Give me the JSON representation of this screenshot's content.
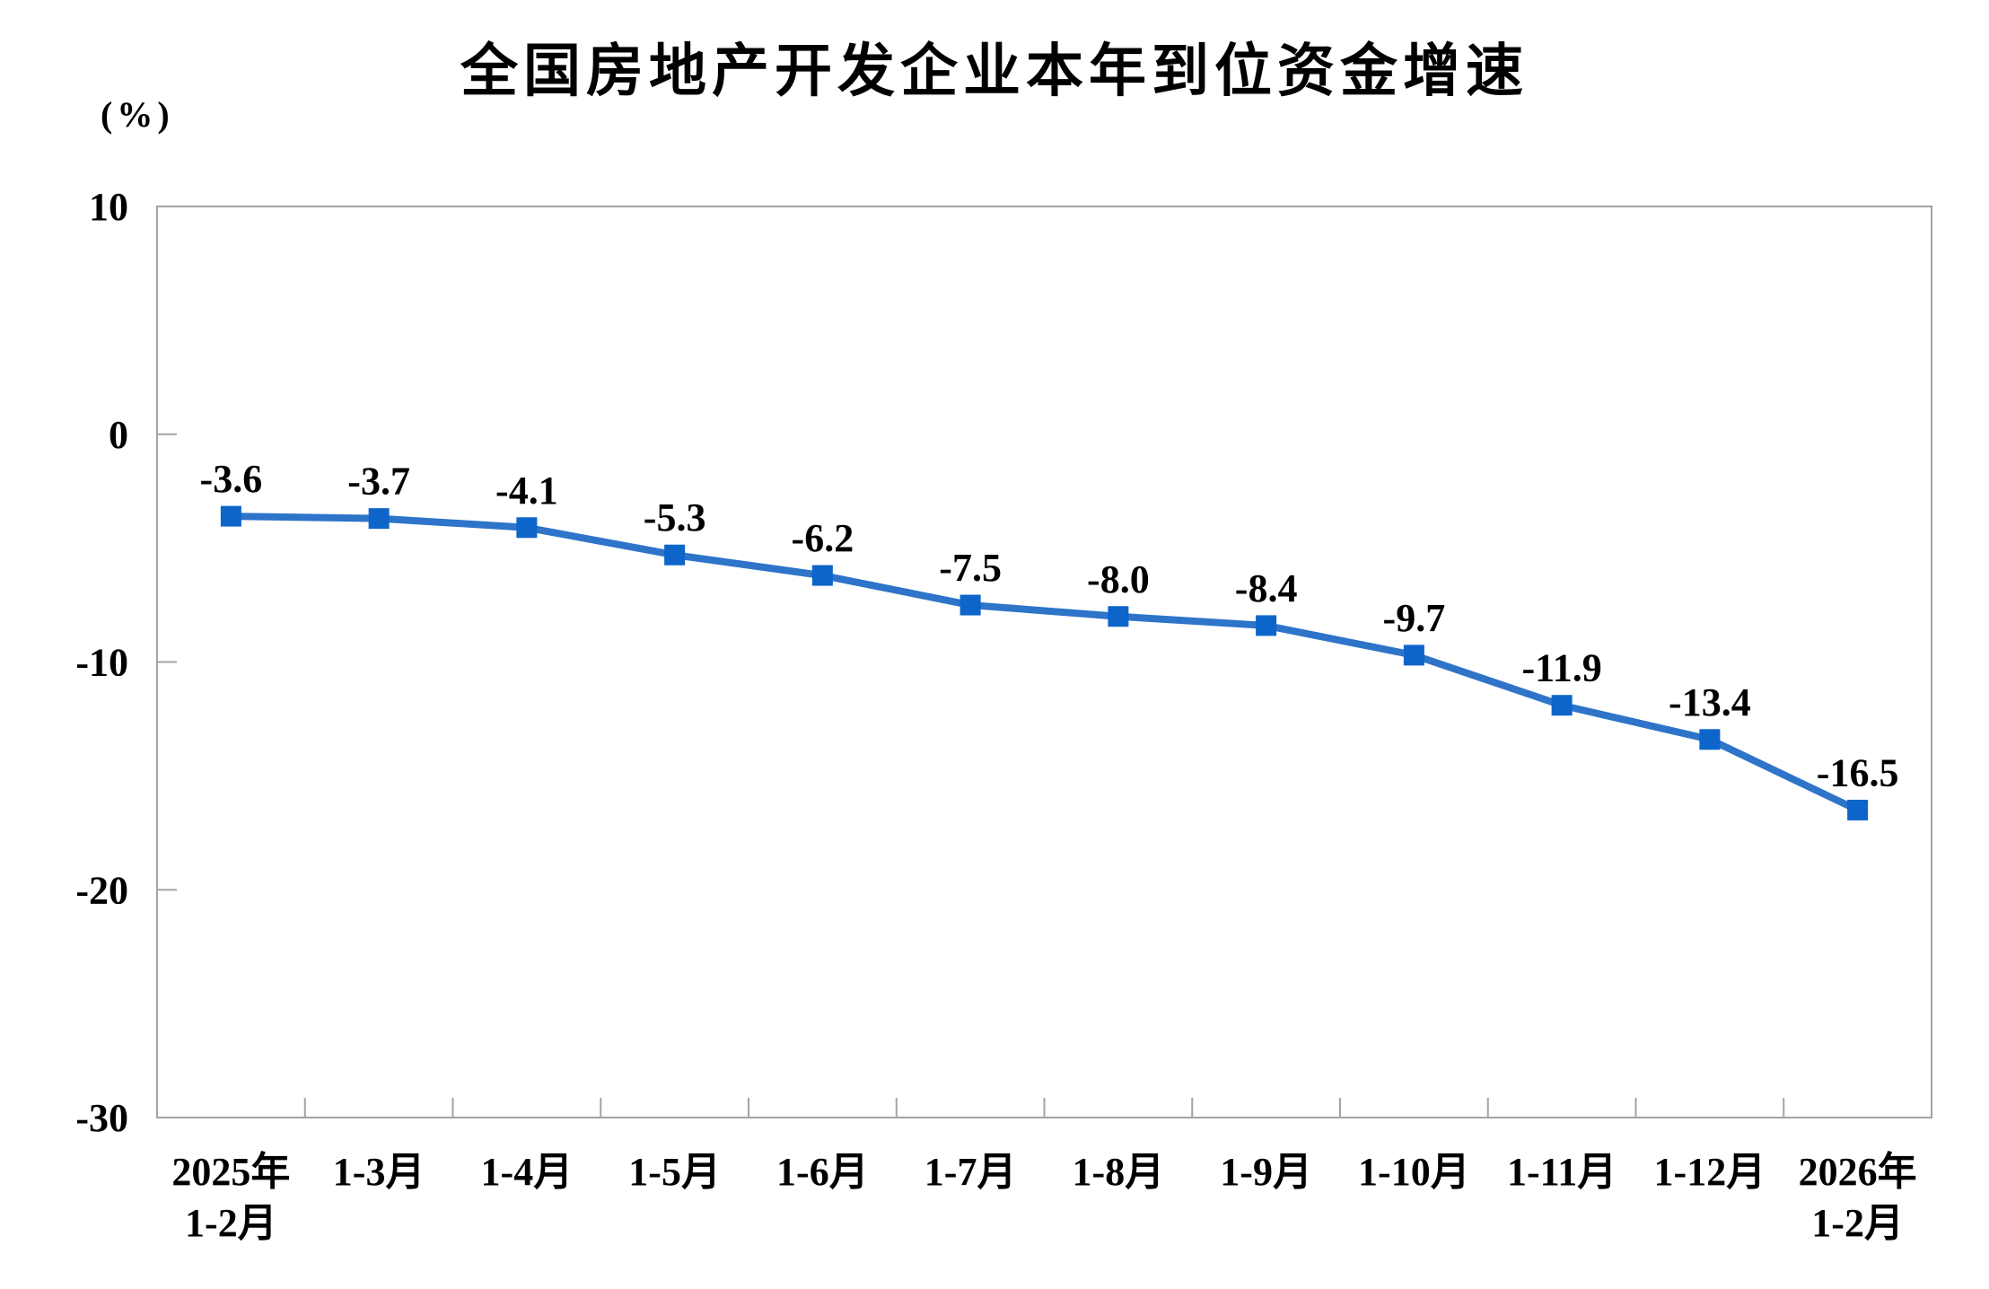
{
  "chart_data": {
    "type": "line",
    "title": "全国房地产开发企业本年到位资金增速",
    "unit_label": "(%)",
    "categories": [
      "2025年\n1-2月",
      "1-3月",
      "1-4月",
      "1-5月",
      "1-6月",
      "1-7月",
      "1-8月",
      "1-9月",
      "1-10月",
      "1-11月",
      "1-12月",
      "2026年\n1-2月"
    ],
    "values": [
      -3.6,
      -3.7,
      -4.1,
      -5.3,
      -6.2,
      -7.5,
      -8.0,
      -8.4,
      -9.7,
      -11.9,
      -13.4,
      -16.5
    ],
    "data_labels": [
      "-3.6",
      "-3.7",
      "-4.1",
      "-5.3",
      "-6.2",
      "-7.5",
      "-8.0",
      "-8.4",
      "-9.7",
      "-11.9",
      "-13.4",
      "-16.5"
    ],
    "xlabel": "",
    "ylabel": "(%)",
    "ylim": [
      -30,
      10
    ],
    "y_ticks": [
      10,
      0,
      -10,
      -20,
      -30
    ],
    "grid": "off",
    "legend": "none",
    "marker_shape": "square",
    "colors": {
      "line": "#2E74C9",
      "marker": "#0D65CA",
      "axis": "#A3A3A3",
      "text": "#000000"
    }
  }
}
